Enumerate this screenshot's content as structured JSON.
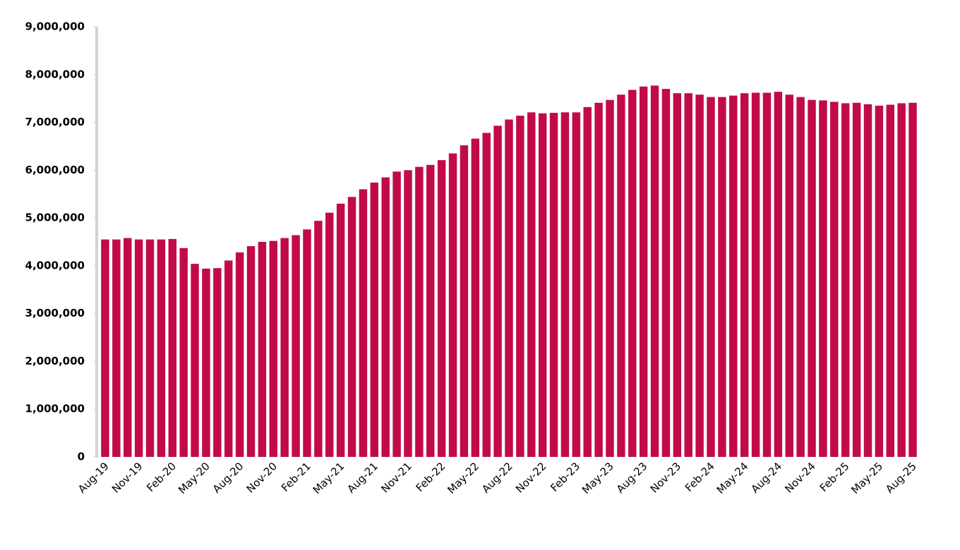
{
  "chart_data": {
    "type": "bar",
    "categories": [
      "Aug-19",
      null,
      null,
      "Nov-19",
      null,
      null,
      "Feb-20",
      null,
      null,
      "May-20",
      null,
      null,
      "Aug-20",
      null,
      null,
      "Nov-20",
      null,
      null,
      "Feb-21",
      null,
      null,
      "May-21",
      null,
      null,
      "Aug-21",
      null,
      null,
      "Nov-21",
      null,
      null,
      "Feb-22",
      null,
      null,
      "May-22",
      null,
      null,
      "Aug-22",
      null,
      null,
      "Nov-22",
      null,
      null,
      "Feb-23",
      null,
      null,
      "May-23",
      null,
      null,
      "Aug-23",
      null,
      null,
      "Nov-23",
      null,
      null,
      "Feb-24",
      null,
      null,
      "May-24",
      null,
      null,
      "Aug-24",
      null,
      null,
      "Nov-24",
      null,
      null,
      "Feb-25",
      null,
      null,
      "May-25",
      null,
      null,
      "Aug-25"
    ],
    "values": [
      4550000,
      4550000,
      4580000,
      4550000,
      4550000,
      4550000,
      4560000,
      4370000,
      4040000,
      3940000,
      3950000,
      4110000,
      4280000,
      4410000,
      4500000,
      4520000,
      4580000,
      4640000,
      4760000,
      4940000,
      5110000,
      5300000,
      5440000,
      5600000,
      5740000,
      5850000,
      5970000,
      6000000,
      6070000,
      6110000,
      6210000,
      6350000,
      6520000,
      6660000,
      6780000,
      6930000,
      7060000,
      7140000,
      7210000,
      7190000,
      7200000,
      7210000,
      7210000,
      7320000,
      7410000,
      7470000,
      7580000,
      7680000,
      7750000,
      7770000,
      7700000,
      7610000,
      7610000,
      7580000,
      7530000,
      7530000,
      7560000,
      7610000,
      7620000,
      7620000,
      7640000,
      7580000,
      7530000,
      7470000,
      7460000,
      7430000,
      7400000,
      7410000,
      7380000,
      7350000,
      7370000,
      7400000,
      7410000
    ],
    "color": "#c20a4a",
    "ylim": [
      0,
      9000000
    ],
    "yticks": [
      0,
      {
        "value": 1000000,
        "label": "1,000,000"
      },
      {
        "value": 2000000,
        "label": "2,000,000"
      },
      {
        "value": 3000000,
        "label": "3,000,000"
      },
      {
        "value": 4000000,
        "label": "4,000,000"
      },
      {
        "value": 5000000,
        "label": "5,000,000"
      },
      {
        "value": 6000000,
        "label": "6,000,000"
      },
      {
        "value": 7000000,
        "label": "7,000,000"
      },
      {
        "value": 8000000,
        "label": "8,000,000"
      },
      {
        "value": 9000000,
        "label": "9,000,000"
      }
    ],
    "grid": false
  }
}
